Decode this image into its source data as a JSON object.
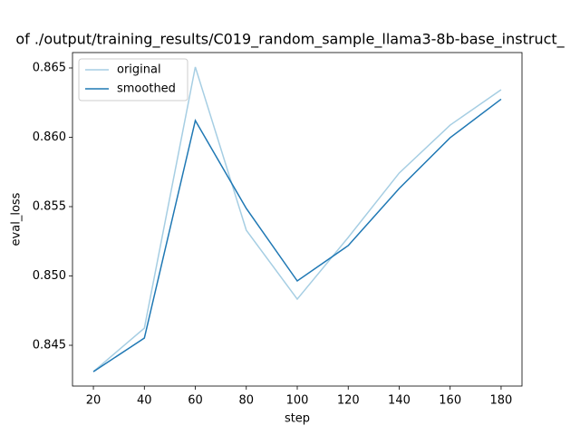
{
  "chart_data": {
    "type": "line",
    "title": "of ./output/training_results/C019_random_sample_llama3-8b-base_instruct_",
    "x_label": "step",
    "y_label": "eval_loss",
    "x": [
      20,
      40,
      60,
      80,
      100,
      120,
      140,
      160,
      180
    ],
    "series": [
      {
        "name": "original",
        "color": "#a6cee3",
        "values": [
          0.8431,
          0.84624,
          0.86507,
          0.8533,
          0.84833,
          0.85278,
          0.85742,
          0.86088,
          0.86343
        ]
      },
      {
        "name": "smoothed",
        "color": "#1f78b4",
        "values": [
          0.8431,
          0.84552,
          0.86121,
          0.85487,
          0.84964,
          0.85219,
          0.85631,
          0.85997,
          0.86275
        ]
      }
    ],
    "xlim": [
      11.8,
      188.2
    ],
    "ylim": [
      0.84206,
      0.86611
    ],
    "xticks": [
      20,
      40,
      60,
      80,
      100,
      120,
      140,
      160,
      180
    ],
    "yticks": [
      0.845,
      {
        "value": 0.85,
        "label": "0.850"
      },
      0.855,
      {
        "value": 0.86,
        "label": "0.860"
      },
      0.865
    ],
    "legend": "upper left"
  }
}
